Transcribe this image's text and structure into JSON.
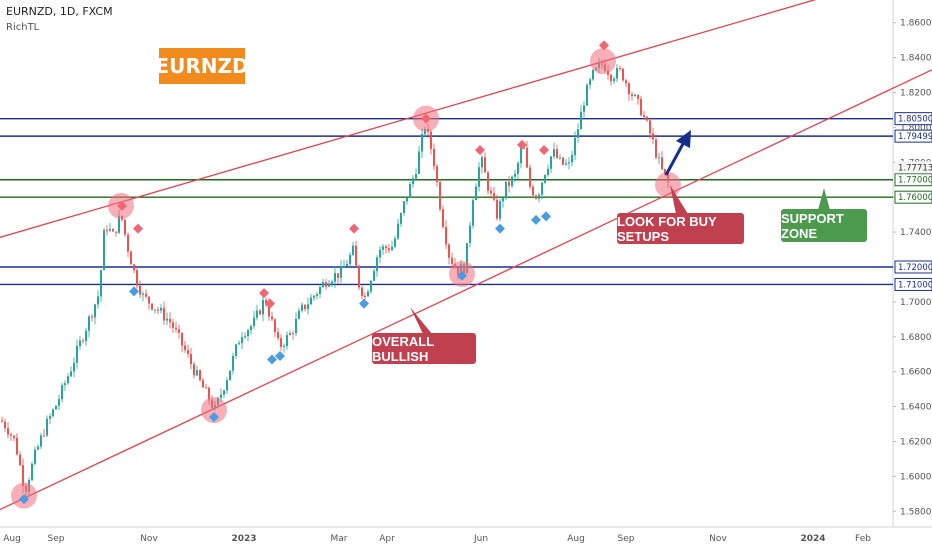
{
  "header": {
    "symbol_line": "EURNZD, 1D, FXCM",
    "indicator": "RichTL"
  },
  "logo": {
    "text": "EURNZD",
    "color": "#f28b1d"
  },
  "annotations": {
    "overall_bullish": "OVERALL BULLISH",
    "look_for_buy": "LOOK FOR BUY SETUPS",
    "support_zone": "SUPPORT ZONE"
  },
  "colors": {
    "up_candle": "#26a69a",
    "down_candle": "#ef5350",
    "trendline": "#e5424d",
    "resistance_line": "#1a2e8f",
    "support_line": "#1e6b1e",
    "callout_red": "#c0404f",
    "callout_green": "#4c9a4e",
    "diamond_red": "#f06672",
    "diamond_blue": "#4a9be3",
    "arrow": "#152e8c"
  },
  "chart_data": {
    "type": "candlestick",
    "title": "EURNZD, 1D, FXCM",
    "x_ticks": [
      "Aug",
      "Sep",
      "Nov",
      "2023",
      "Mar",
      "Apr",
      "Jun",
      "Aug",
      "Sep",
      "Nov",
      "2024",
      "Feb"
    ],
    "y_ticks": [
      "1.86000",
      "1.84000",
      "1.82000",
      "1.80000",
      "1.78000",
      "1.76000",
      "1.74000",
      "1.72000",
      "1.70000",
      "1.68000",
      "1.66000",
      "1.64000",
      "1.62000",
      "1.60000",
      "1.58000"
    ],
    "ylim": [
      1.571,
      1.873
    ],
    "price_path": [
      [
        0,
        1.632
      ],
      [
        6,
        1.628
      ],
      [
        14,
        1.62
      ],
      [
        24,
        1.592
      ],
      [
        34,
        1.612
      ],
      [
        44,
        1.628
      ],
      [
        56,
        1.642
      ],
      [
        70,
        1.662
      ],
      [
        84,
        1.684
      ],
      [
        98,
        1.705
      ],
      [
        104,
        1.745
      ],
      [
        112,
        1.738
      ],
      [
        120,
        1.75
      ],
      [
        126,
        1.733
      ],
      [
        134,
        1.715
      ],
      [
        142,
        1.703
      ],
      [
        156,
        1.696
      ],
      [
        170,
        1.688
      ],
      [
        184,
        1.672
      ],
      [
        198,
        1.655
      ],
      [
        214,
        1.638
      ],
      [
        228,
        1.66
      ],
      [
        240,
        1.682
      ],
      [
        252,
        1.687
      ],
      [
        264,
        1.702
      ],
      [
        270,
        1.69
      ],
      [
        278,
        1.674
      ],
      [
        290,
        1.682
      ],
      [
        300,
        1.695
      ],
      [
        312,
        1.703
      ],
      [
        326,
        1.713
      ],
      [
        340,
        1.717
      ],
      [
        352,
        1.729
      ],
      [
        358,
        1.71
      ],
      [
        364,
        1.703
      ],
      [
        378,
        1.73
      ],
      [
        392,
        1.732
      ],
      [
        404,
        1.758
      ],
      [
        414,
        1.774
      ],
      [
        424,
        1.801
      ],
      [
        432,
        1.784
      ],
      [
        440,
        1.752
      ],
      [
        448,
        1.727
      ],
      [
        456,
        1.718
      ],
      [
        464,
        1.72
      ],
      [
        472,
        1.761
      ],
      [
        480,
        1.782
      ],
      [
        488,
        1.764
      ],
      [
        496,
        1.75
      ],
      [
        504,
        1.765
      ],
      [
        514,
        1.772
      ],
      [
        522,
        1.791
      ],
      [
        528,
        1.767
      ],
      [
        536,
        1.76
      ],
      [
        544,
        1.775
      ],
      [
        552,
        1.786
      ],
      [
        560,
        1.779
      ],
      [
        568,
        1.778
      ],
      [
        576,
        1.797
      ],
      [
        584,
        1.818
      ],
      [
        592,
        1.83
      ],
      [
        602,
        1.837
      ],
      [
        610,
        1.83
      ],
      [
        620,
        1.832
      ],
      [
        630,
        1.82
      ],
      [
        640,
        1.81
      ],
      [
        650,
        1.795
      ],
      [
        660,
        1.776
      ],
      [
        668,
        1.767
      ]
    ],
    "horizontal_levels": [
      {
        "price": 1.805,
        "label": "1.80500",
        "color": "#1a2e8f"
      },
      {
        "price": 1.79499,
        "label": "1.79499",
        "color": "#1a2e8f"
      },
      {
        "price": 1.77,
        "label": "1.77000",
        "color": "#1e6b1e"
      },
      {
        "price": 1.76,
        "label": "1.76000",
        "color": "#1e6b1e"
      },
      {
        "price": 1.72,
        "label": "1.72000",
        "color": "#1a2e8f"
      },
      {
        "price": 1.71,
        "label": "1.71000",
        "color": "#1a2e8f"
      }
    ],
    "current_price_label": "1.77713",
    "current_price": 1.77713,
    "trendlines": [
      {
        "x1": 0,
        "p1": 1.737,
        "x2": 820,
        "p2": 1.874
      },
      {
        "x1": 0,
        "p1": 1.581,
        "x2": 932,
        "p2": 1.833
      }
    ],
    "diamonds": [
      {
        "x": 24,
        "price": 1.587,
        "kind": "blue"
      },
      {
        "x": 122,
        "price": 1.755,
        "kind": "red"
      },
      {
        "x": 138,
        "price": 1.742,
        "kind": "red"
      },
      {
        "x": 134,
        "price": 1.706,
        "kind": "blue"
      },
      {
        "x": 214,
        "price": 1.634,
        "kind": "blue"
      },
      {
        "x": 264,
        "price": 1.705,
        "kind": "red"
      },
      {
        "x": 270,
        "price": 1.699,
        "kind": "red"
      },
      {
        "x": 272,
        "price": 1.667,
        "kind": "blue"
      },
      {
        "x": 280,
        "price": 1.669,
        "kind": "blue"
      },
      {
        "x": 354,
        "price": 1.742,
        "kind": "red"
      },
      {
        "x": 364,
        "price": 1.699,
        "kind": "blue"
      },
      {
        "x": 426,
        "price": 1.805,
        "kind": "red"
      },
      {
        "x": 462,
        "price": 1.715,
        "kind": "blue"
      },
      {
        "x": 480,
        "price": 1.787,
        "kind": "red"
      },
      {
        "x": 500,
        "price": 1.742,
        "kind": "blue"
      },
      {
        "x": 522,
        "price": 1.79,
        "kind": "red"
      },
      {
        "x": 536,
        "price": 1.747,
        "kind": "blue"
      },
      {
        "x": 546,
        "price": 1.749,
        "kind": "blue"
      },
      {
        "x": 544,
        "price": 1.787,
        "kind": "red"
      },
      {
        "x": 604,
        "price": 1.847,
        "kind": "red"
      }
    ],
    "pivot_circles": [
      {
        "x": 24,
        "price": 1.589
      },
      {
        "x": 121,
        "price": 1.755
      },
      {
        "x": 214,
        "price": 1.638
      },
      {
        "x": 426,
        "price": 1.805
      },
      {
        "x": 462,
        "price": 1.716
      },
      {
        "x": 603,
        "price": 1.838
      },
      {
        "x": 668,
        "price": 1.767
      }
    ]
  }
}
